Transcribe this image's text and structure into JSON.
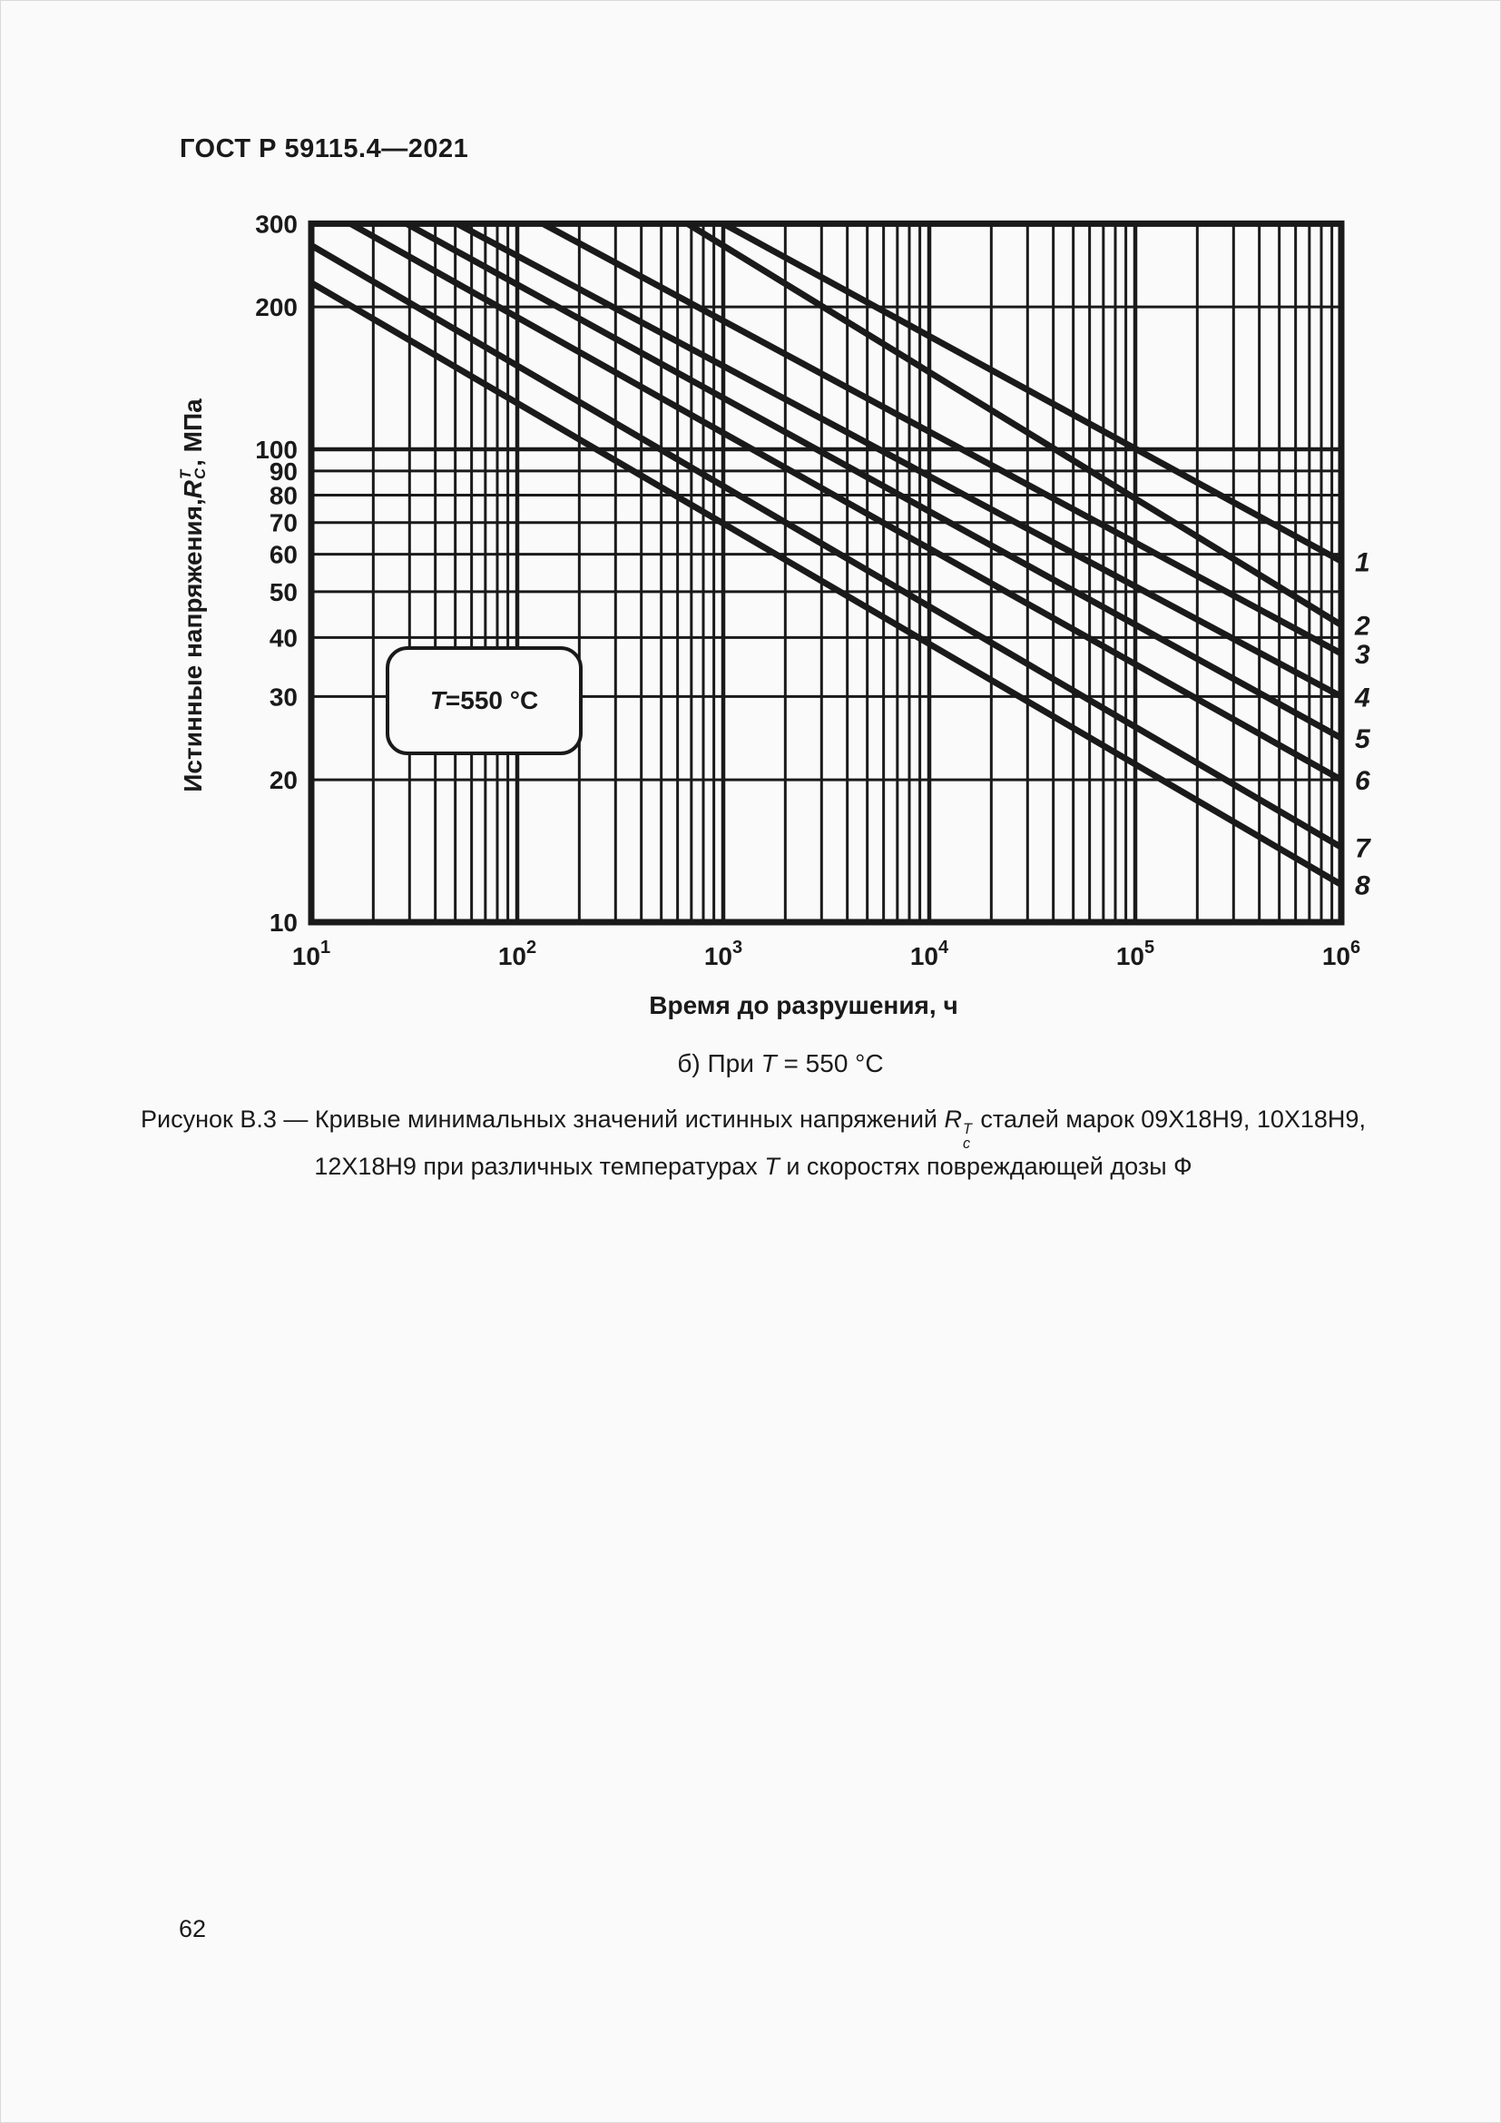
{
  "page": {
    "header": "ГОСТ Р 59115.4—2021",
    "page_number": "62"
  },
  "chart_data": {
    "type": "line",
    "x_axis": {
      "label": "Время до разрушения, ч",
      "scale": "log",
      "range": [
        10,
        1000000
      ],
      "ticks": [
        {
          "base": "10",
          "exp": "1"
        },
        {
          "base": "10",
          "exp": "2"
        },
        {
          "base": "10",
          "exp": "3"
        },
        {
          "base": "10",
          "exp": "4"
        },
        {
          "base": "10",
          "exp": "5"
        },
        {
          "base": "10",
          "exp": "6"
        }
      ]
    },
    "y_axis": {
      "label_prefix": "Истинные напряжения, ",
      "label_symbol": "R",
      "label_sup": "T",
      "label_sub": "C",
      "label_suffix": ", МПа",
      "scale": "log",
      "range": [
        10,
        300
      ],
      "tick_values": [
        300,
        200,
        100,
        90,
        80,
        70,
        60,
        50,
        40,
        30,
        20,
        10
      ],
      "gridline_values": [
        20,
        30,
        40,
        50,
        60,
        70,
        80,
        90,
        100,
        200
      ]
    },
    "annotation": {
      "symbol": "T",
      "text": "=550 °C"
    },
    "legend_position": "right-edge-labels",
    "grid": true,
    "line_color": "#1a1a1a",
    "series": [
      {
        "label": "1",
        "points": [
          [
            1000,
            300
          ],
          [
            1000000,
            58
          ]
        ]
      },
      {
        "label": "2",
        "points": [
          [
            670,
            300
          ],
          [
            1000000,
            42.5
          ]
        ]
      },
      {
        "label": "3",
        "points": [
          [
            133,
            300
          ],
          [
            1000000,
            37
          ]
        ]
      },
      {
        "label": "4",
        "points": [
          [
            51,
            300
          ],
          [
            1000000,
            30
          ]
        ]
      },
      {
        "label": "5",
        "points": [
          [
            29,
            300
          ],
          [
            1000000,
            24.5
          ]
        ]
      },
      {
        "label": "6",
        "points": [
          [
            15.5,
            300
          ],
          [
            1000000,
            20
          ]
        ]
      },
      {
        "label": "7",
        "points": [
          [
            10,
            270
          ],
          [
            1000000,
            14.4
          ]
        ]
      },
      {
        "label": "8",
        "points": [
          [
            10,
            225
          ],
          [
            1000000,
            12
          ]
        ]
      }
    ]
  },
  "captions": {
    "subtitle": {
      "prefix": "б) При ",
      "symbol": "T",
      "suffix": " = 550 °C"
    },
    "figure_line1": {
      "prefix": "Рисунок В.3 — Кривые минимальных значений истинных напряжений ",
      "symbol": "R",
      "sup": "T",
      "sub": "c",
      "suffix": " сталей марок 09Х18Н9, 10Х18Н9,"
    },
    "figure_line2": {
      "prefix": "12Х18Н9 при различных температурах ",
      "symbol": "Т",
      "suffix": " и скоростях повреждающей дозы Ф"
    }
  }
}
